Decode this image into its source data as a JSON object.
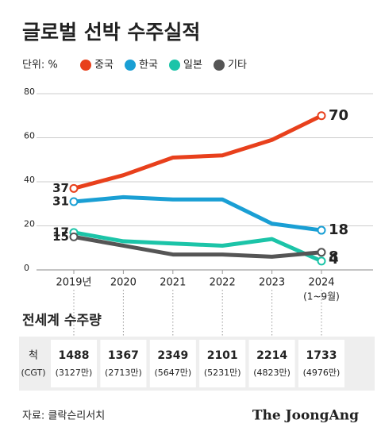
{
  "chart_data": {
    "type": "line",
    "title": "글로벌 선박 수주실적",
    "unit": "단위: %",
    "categories": [
      "2019년",
      "2020",
      "2021",
      "2022",
      "2023",
      "2024"
    ],
    "last_category_note": "(1~9월)",
    "series": [
      {
        "name": "중국",
        "color": "#e8401c",
        "values": [
          37,
          43,
          51,
          52,
          59,
          70
        ]
      },
      {
        "name": "한국",
        "color": "#1a9fd4",
        "values": [
          31,
          33,
          32,
          32,
          21,
          18
        ]
      },
      {
        "name": "일본",
        "color": "#1cc4a8",
        "values": [
          17,
          13,
          12,
          11,
          14,
          4
        ]
      },
      {
        "name": "기타",
        "color": "#555555",
        "values": [
          15,
          11,
          7,
          7,
          6,
          8
        ]
      }
    ],
    "ylim": [
      0,
      80
    ],
    "yticks": [
      0,
      20,
      40,
      60,
      80
    ],
    "grid": true
  },
  "table": {
    "title": "전세계 수주량",
    "row_label": "척",
    "row_sublabel": "(CGT)",
    "cells": [
      {
        "ships": 1488,
        "cgt": "(3127만)"
      },
      {
        "ships": 1367,
        "cgt": "(2713만)"
      },
      {
        "ships": 2349,
        "cgt": "(5647만)"
      },
      {
        "ships": 2101,
        "cgt": "(5231만)"
      },
      {
        "ships": 2214,
        "cgt": "(4823만)"
      },
      {
        "ships": 1733,
        "cgt": "(4976만)"
      }
    ]
  },
  "footer": {
    "source": "자료: 클락슨리서치",
    "brand": "The JoongAng"
  }
}
